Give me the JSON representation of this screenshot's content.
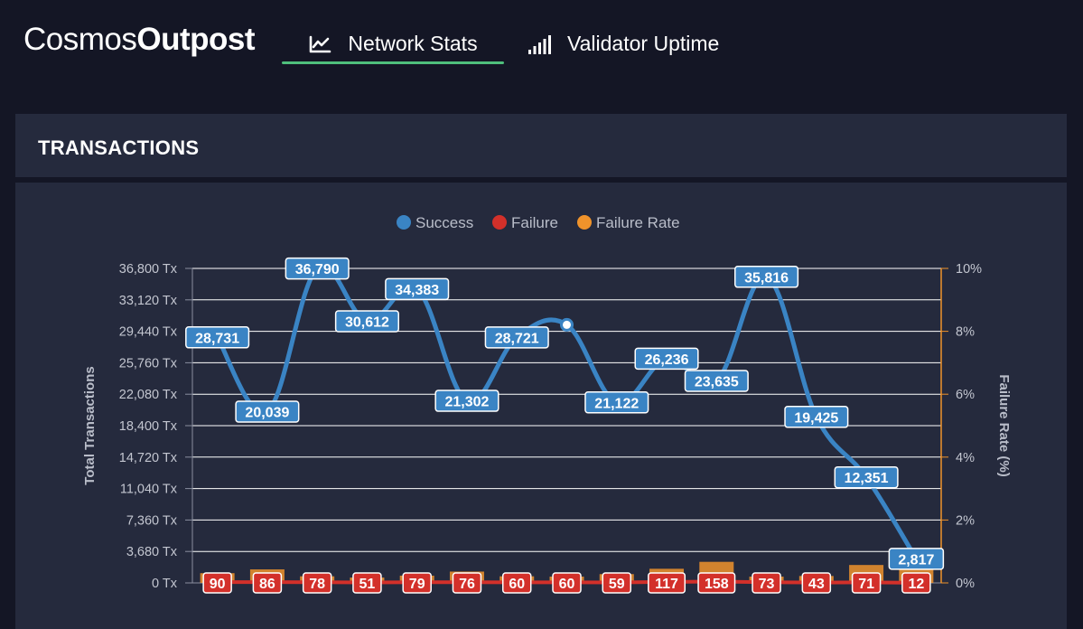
{
  "header": {
    "brand_light": "Cosmos",
    "brand_bold": "Outpost",
    "tabs": [
      {
        "label": "Network Stats",
        "icon": "line-chart-icon",
        "active": true
      },
      {
        "label": "Validator Uptime",
        "icon": "signal-bars-icon",
        "active": false
      }
    ]
  },
  "panel": {
    "title": "TRANSACTIONS"
  },
  "colors": {
    "success": "#3a84c4",
    "failure": "#d3302a",
    "failure_rate": "#f0932b",
    "accent": "#4fbf7c"
  },
  "chart_data": {
    "type": "line",
    "title": "",
    "ylabel": "Total Transactions",
    "y2label": "Failure Rate (%)",
    "ylim": [
      0,
      36800
    ],
    "y2lim": [
      0,
      10
    ],
    "y_ticks": [
      "0 Tx",
      "3,680 Tx",
      "7,360 Tx",
      "11,040 Tx",
      "14,720 Tx",
      "18,400 Tx",
      "22,080 Tx",
      "25,760 Tx",
      "29,440 Tx",
      "33,120 Tx",
      "36,800 Tx"
    ],
    "y2_ticks": [
      "0%",
      "2%",
      "4%",
      "6%",
      "8%",
      "10%"
    ],
    "legend": [
      "Success",
      "Failure",
      "Failure Rate"
    ],
    "legend_position": "top-center",
    "series": [
      {
        "name": "Success",
        "values": [
          28731,
          20039,
          36790,
          30612,
          34383,
          21302,
          28721,
          30200,
          21122,
          26236,
          23635,
          35816,
          19425,
          12351,
          2817
        ],
        "labels": [
          "28,731",
          "20,039",
          "36,790",
          "30,612",
          "34,383",
          "21,302",
          "28,721",
          "",
          "21,122",
          "26,236",
          "23,635",
          "35,816",
          "19,425",
          "12,351",
          "2,817"
        ]
      },
      {
        "name": "Failure",
        "values": [
          90,
          86,
          78,
          51,
          79,
          76,
          60,
          60,
          59,
          117,
          158,
          73,
          43,
          71,
          12
        ],
        "labels": [
          "90",
          "86",
          "78",
          "51",
          "79",
          "76",
          "60",
          "60",
          "59",
          "117",
          "158",
          "73",
          "43",
          "71",
          "12"
        ]
      },
      {
        "name": "Failure Rate",
        "values": [
          0.31,
          0.43,
          0.21,
          0.17,
          0.23,
          0.36,
          0.21,
          0.2,
          0.28,
          0.45,
          0.67,
          0.2,
          0.22,
          0.57,
          0.43
        ]
      }
    ]
  }
}
